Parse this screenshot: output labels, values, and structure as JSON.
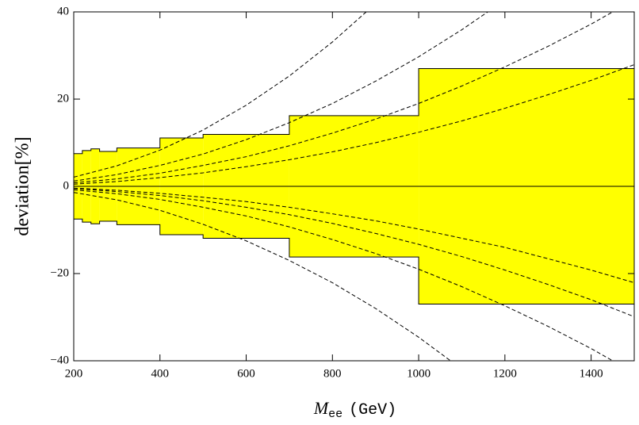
{
  "chart_data": {
    "type": "band-lines",
    "ylabel": "deviation[%]",
    "xlabel": "M",
    "xlabel_sub": "ee",
    "xlabel_unit": "(GeV)",
    "xlim": [
      200,
      1500
    ],
    "ylim": [
      -40,
      40
    ],
    "xticks": [
      200,
      400,
      600,
      800,
      1000,
      1200,
      1400
    ],
    "yticks": [
      {
        "value": -40,
        "label": "−40"
      },
      {
        "value": -20,
        "label": "−20"
      },
      0,
      20,
      40
    ],
    "band": {
      "color": "#ffff00",
      "bins": [
        200,
        220,
        240,
        260,
        300,
        400,
        500,
        700,
        1000,
        1500
      ],
      "values": [
        7.5,
        8.2,
        8.6,
        8.0,
        8.8,
        11.1,
        11.9,
        16.2,
        27.0
      ]
    },
    "x": [
      200,
      300,
      400,
      500,
      600,
      700,
      800,
      900,
      1000,
      1100,
      1200,
      1300,
      1400,
      1500
    ],
    "series": [
      {
        "color": "#000000",
        "values": [
          2.1,
          4.7,
          8.3,
          12.9,
          18.6,
          25.3,
          33.1,
          41.9,
          null,
          null,
          null,
          null,
          null,
          null
        ]
      },
      {
        "color": "#000000",
        "values": [
          1.2,
          2.7,
          4.8,
          7.4,
          10.7,
          14.6,
          19.0,
          24.1,
          29.7,
          35.9,
          42.7,
          null,
          null,
          null
        ]
      },
      {
        "color": "#000000",
        "values": [
          0.8,
          1.7,
          3.0,
          4.8,
          6.8,
          9.3,
          12.2,
          15.4,
          19.0,
          23.0,
          27.4,
          32.1,
          37.2,
          42.8
        ]
      },
      {
        "color": "#000000",
        "values": [
          0.5,
          1.1,
          2.0,
          3.1,
          4.5,
          6.1,
          7.9,
          10.0,
          12.4,
          15.0,
          17.9,
          21.0,
          24.3,
          27.9
        ]
      },
      {
        "color": "#000000",
        "values": [
          -1.4,
          -3.1,
          -5.5,
          -8.7,
          -12.5,
          -17.0,
          -22.1,
          -28.0,
          -34.6,
          -41.9,
          null,
          null,
          null,
          null
        ]
      },
      {
        "color": "#000000",
        "values": [
          -0.8,
          -1.7,
          -3.0,
          -4.8,
          -6.8,
          -9.3,
          -12.2,
          -15.4,
          -19.0,
          -23.0,
          -27.4,
          -32.1,
          -37.2,
          -42.8
        ]
      },
      {
        "color": "#000000",
        "values": [
          -0.5,
          -1.2,
          -2.1,
          -3.3,
          -4.8,
          -6.5,
          -8.5,
          -10.8,
          -13.3,
          -16.1,
          -19.2,
          -22.5,
          -26.0,
          -29.9
        ]
      },
      {
        "color": "#000000",
        "values": [
          -0.4,
          -0.9,
          -1.6,
          -2.5,
          -3.5,
          -4.8,
          -6.3,
          -7.9,
          -9.8,
          -11.9,
          -14.0,
          -16.6,
          -19.2,
          -22.1
        ]
      }
    ]
  }
}
